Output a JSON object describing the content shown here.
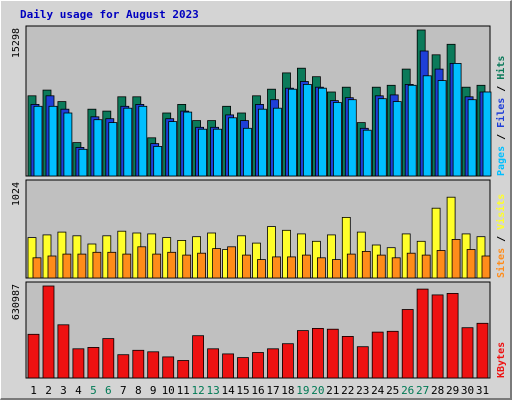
{
  "title": "Daily usage for August 2023",
  "colors": {
    "pages": "#00bfff",
    "files": "#1f3fd8",
    "hits": "#0b7a5a",
    "visits": "#ffff2a",
    "sites": "#ff8c1a",
    "kbytes": "#ee1111",
    "weekend_day": "#007a55",
    "weekday": "#000000"
  },
  "chart_data": [
    {
      "type": "bar",
      "name": "top",
      "max_label": "15298",
      "legend": [
        "Pages",
        "Files",
        "Hits"
      ],
      "legend_colors": [
        "#00bfff",
        "#1f3fd8",
        "#0b7a5a"
      ],
      "x": [
        1,
        2,
        3,
        4,
        5,
        6,
        7,
        8,
        9,
        10,
        11,
        12,
        13,
        14,
        15,
        16,
        17,
        18,
        19,
        20,
        21,
        22,
        23,
        24,
        25,
        26,
        27,
        28,
        29,
        30,
        31
      ],
      "ylim": [
        0,
        15298
      ],
      "series": [
        {
          "name": "Hits",
          "values": [
            8400,
            9000,
            7800,
            3500,
            7000,
            6800,
            8300,
            8300,
            4000,
            6600,
            7500,
            5800,
            5800,
            7300,
            6600,
            8400,
            9100,
            10800,
            11300,
            10400,
            8800,
            9300,
            5600,
            9300,
            9500,
            11200,
            15298,
            12700,
            13800,
            9300,
            9500
          ]
        },
        {
          "name": "Files",
          "values": [
            7500,
            8400,
            7000,
            3000,
            6200,
            6000,
            7300,
            7500,
            3400,
            6000,
            6800,
            5100,
            5100,
            6400,
            5800,
            7500,
            8000,
            9200,
            9900,
            9300,
            7900,
            8200,
            5000,
            8400,
            8500,
            9600,
            13100,
            11200,
            11800,
            8300,
            8800
          ]
        },
        {
          "name": "Pages",
          "values": [
            7300,
            7300,
            6600,
            2800,
            5900,
            5600,
            7100,
            7300,
            3100,
            5700,
            6700,
            4900,
            4900,
            6100,
            5000,
            7000,
            7100,
            9100,
            9600,
            9200,
            7700,
            8000,
            4800,
            8100,
            7800,
            9500,
            10500,
            10000,
            11800,
            8000,
            8800
          ]
        }
      ]
    },
    {
      "type": "bar",
      "name": "middle",
      "max_label": "1024",
      "legend": [
        "Sites",
        "Visits"
      ],
      "legend_colors": [
        "#ff8c1a",
        "#ffff2a"
      ],
      "x": [
        1,
        2,
        3,
        4,
        5,
        6,
        7,
        8,
        9,
        10,
        11,
        12,
        13,
        14,
        15,
        16,
        17,
        18,
        19,
        20,
        21,
        22,
        23,
        24,
        25,
        26,
        27,
        28,
        29,
        30,
        31
      ],
      "ylim": [
        0,
        1024
      ],
      "series": [
        {
          "name": "Visits",
          "values": [
            440,
            470,
            500,
            460,
            370,
            460,
            510,
            490,
            480,
            440,
            410,
            450,
            490,
            310,
            460,
            380,
            560,
            520,
            480,
            400,
            470,
            660,
            500,
            360,
            330,
            480,
            400,
            760,
            880,
            480,
            450
          ]
        },
        {
          "name": "Sites",
          "values": [
            220,
            240,
            260,
            260,
            280,
            280,
            260,
            340,
            260,
            280,
            250,
            270,
            320,
            340,
            250,
            200,
            230,
            230,
            250,
            220,
            200,
            260,
            290,
            250,
            220,
            270,
            250,
            300,
            420,
            310,
            240
          ]
        }
      ]
    },
    {
      "type": "bar",
      "name": "bottom",
      "max_label": "630987",
      "legend": [
        "KBytes"
      ],
      "legend_colors": [
        "#ee1111"
      ],
      "x": [
        1,
        2,
        3,
        4,
        5,
        6,
        7,
        8,
        9,
        10,
        11,
        12,
        13,
        14,
        15,
        16,
        17,
        18,
        19,
        20,
        21,
        22,
        23,
        24,
        25,
        26,
        27,
        28,
        29,
        30,
        31
      ],
      "ylim": [
        0,
        630987
      ],
      "series": [
        {
          "name": "KBytes",
          "values": [
            300000,
            630987,
            365000,
            200000,
            210000,
            270000,
            160000,
            190000,
            180000,
            145000,
            120000,
            290000,
            200000,
            165000,
            140000,
            175000,
            200000,
            235000,
            325000,
            340000,
            335000,
            285000,
            215000,
            315000,
            320000,
            470000,
            610000,
            570000,
            580000,
            345000,
            375000
          ]
        }
      ]
    }
  ],
  "x_labels": [
    "1",
    "2",
    "3",
    "4",
    "5",
    "6",
    "7",
    "8",
    "9",
    "10",
    "11",
    "12",
    "13",
    "14",
    "15",
    "16",
    "17",
    "18",
    "19",
    "20",
    "21",
    "22",
    "23",
    "24",
    "25",
    "26",
    "27",
    "28",
    "29",
    "30",
    "31"
  ],
  "weekend_days": [
    5,
    6,
    12,
    13,
    19,
    20,
    26,
    27
  ]
}
